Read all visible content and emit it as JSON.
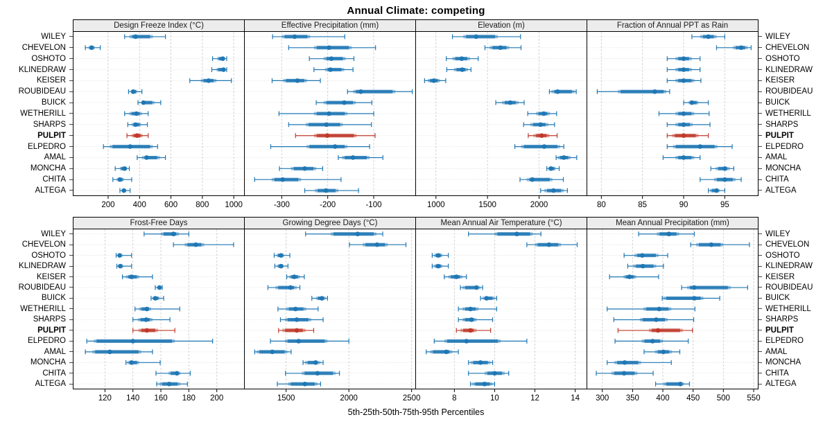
{
  "title": "Annual Climate: competing",
  "caption": "5th-25th-50th-75th-95th Percentiles",
  "colors": {
    "series": "#1F77B4",
    "highlight": "#C0392B",
    "grid": "#CFCFCF",
    "row_guide": "#D8D8D8",
    "strip_bg": "#ECECEC",
    "panel_border": "#000000",
    "tick_label": "#000000"
  },
  "chart_data": {
    "type": "percentile-interval",
    "note": "each series value array is [q05,q25,q50,q75,q95]",
    "legend": "5th-25th-50th-75th-95th Percentiles",
    "highlight_site": "PULPIT",
    "sites": [
      "WILEY",
      "CHEVELON",
      "OSHOTO",
      "KLINEDRAW",
      "KEISER",
      "ROUBIDEAU",
      "BUICK",
      "WETHERILL",
      "SHARPS",
      "PULPIT",
      "ELPEDRO",
      "AMAL",
      "MONCHA",
      "CHITA",
      "ALTEGA"
    ],
    "panels": [
      {
        "title": "Design Freeze Index (°C)",
        "row": "top",
        "xlim": [
          -25,
          1070
        ],
        "ticks": [
          200,
          400,
          600,
          800,
          1000
        ],
        "values": {
          "WILEY": [
            305,
            335,
            375,
            485,
            565
          ],
          "CHEVELON": [
            55,
            75,
            95,
            115,
            150
          ],
          "OSHOTO": [
            865,
            895,
            930,
            945,
            955
          ],
          "KLINEDRAW": [
            860,
            890,
            935,
            948,
            955
          ],
          "KEISER": [
            720,
            790,
            840,
            890,
            985
          ],
          "ROUBIDEAU": [
            330,
            345,
            360,
            385,
            415
          ],
          "BUICK": [
            390,
            415,
            425,
            495,
            535
          ],
          "WETHERILL": [
            305,
            335,
            380,
            415,
            455
          ],
          "SHARPS": [
            325,
            350,
            375,
            410,
            450
          ],
          "PULPIT": [
            320,
            350,
            385,
            420,
            455
          ],
          "ELPEDRO": [
            170,
            210,
            340,
            485,
            515
          ],
          "AMAL": [
            385,
            415,
            445,
            530,
            565
          ],
          "MONCHA": [
            245,
            275,
            305,
            320,
            335
          ],
          "CHITA": [
            230,
            255,
            275,
            300,
            350
          ],
          "ALTEGA": [
            275,
            290,
            300,
            315,
            340
          ]
        }
      },
      {
        "title": "Effective Precipitation (mm)",
        "row": "top",
        "xlim": [
          -382,
          -8
        ],
        "ticks": [
          -300,
          -200,
          -100
        ],
        "values": {
          "WILEY": [
            -320,
            -300,
            -272,
            -238,
            -163
          ],
          "CHEVELON": [
            -285,
            -230,
            -197,
            -148,
            -96
          ],
          "OSHOTO": [
            -240,
            -209,
            -192,
            -161,
            -143
          ],
          "KLINEDRAW": [
            -230,
            -206,
            -194,
            -164,
            -145
          ],
          "KEISER": [
            -321,
            -297,
            -266,
            -245,
            -216
          ],
          "ROUBIDEAU": [
            -157,
            -145,
            -128,
            -53,
            -16
          ],
          "BUICK": [
            -225,
            -209,
            -164,
            -139,
            -104
          ],
          "WETHERILL": [
            -306,
            -230,
            -197,
            -157,
            -100
          ],
          "SHARPS": [
            -285,
            -248,
            -203,
            -167,
            -105
          ],
          "PULPIT": [
            -270,
            -230,
            -201,
            -137,
            -97
          ],
          "ELPEDRO": [
            -324,
            -246,
            -184,
            -157,
            -109
          ],
          "AMAL": [
            -177,
            -169,
            -145,
            -109,
            -80
          ],
          "MONCHA": [
            -305,
            -280,
            -250,
            -225,
            -211
          ],
          "CHITA": [
            -359,
            -322,
            -298,
            -258,
            -171
          ],
          "ALTEGA": [
            -250,
            -228,
            -204,
            -177,
            -133
          ]
        }
      },
      {
        "title": "Elevation (m)",
        "row": "top",
        "xlim": [
          800,
          2467
        ],
        "ticks": [
          1000,
          1500,
          2000
        ],
        "values": {
          "WILEY": [
            1160,
            1265,
            1390,
            1600,
            1820
          ],
          "CHEVELON": [
            1475,
            1520,
            1625,
            1710,
            1825
          ],
          "OSHOTO": [
            1100,
            1160,
            1250,
            1330,
            1410
          ],
          "KLINEDRAW": [
            1105,
            1175,
            1255,
            1310,
            1340
          ],
          "KEISER": [
            890,
            920,
            980,
            1040,
            1095
          ],
          "ROUBIDEAU": [
            2100,
            2120,
            2180,
            2345,
            2360
          ],
          "BUICK": [
            1580,
            1640,
            1720,
            1800,
            1855
          ],
          "WETHERILL": [
            1890,
            1970,
            2045,
            2105,
            2170
          ],
          "SHARPS": [
            1850,
            1915,
            2015,
            2090,
            2150
          ],
          "PULPIT": [
            1895,
            1945,
            2025,
            2100,
            2175
          ],
          "ELPEDRO": [
            1765,
            1825,
            2050,
            2205,
            2240
          ],
          "AMAL": [
            2165,
            2180,
            2240,
            2305,
            2365
          ],
          "MONCHA": [
            2075,
            2090,
            2115,
            2160,
            2195
          ],
          "CHITA": [
            1815,
            1880,
            1935,
            2130,
            2235
          ],
          "ALTEGA": [
            2015,
            2050,
            2140,
            2240,
            2275
          ]
        }
      },
      {
        "title": "Fraction of Annual PPT as Rain",
        "row": "top",
        "xlim": [
          78.2,
          99.1
        ],
        "ticks": [
          80,
          85,
          90,
          95
        ],
        "values": {
          "WILEY": [
            91,
            92,
            93,
            94,
            95
          ],
          "CHEVELON": [
            94,
            96,
            97,
            97.8,
            98.2
          ],
          "OSHOTO": [
            88,
            89,
            90,
            91,
            92
          ],
          "KLINEDRAW": [
            88,
            89,
            90,
            91,
            92
          ],
          "KEISER": [
            88,
            89,
            90,
            91.3,
            92.1
          ],
          "ROUBIDEAU": [
            79.5,
            82,
            86.5,
            87.9,
            88.3
          ],
          "BUICK": [
            90,
            90.6,
            91,
            91.8,
            93
          ],
          "WETHERILL": [
            87,
            89,
            90,
            91.3,
            93.1
          ],
          "SHARPS": [
            88,
            89,
            90,
            91.1,
            93.2
          ],
          "PULPIT": [
            88,
            88.6,
            90,
            91.8,
            93
          ],
          "ELPEDRO": [
            88,
            88.7,
            92,
            94.1,
            95.9
          ],
          "AMAL": [
            87.5,
            89,
            90,
            91.3,
            92
          ],
          "MONCHA": [
            93.3,
            93.9,
            95,
            95.6,
            96.1
          ],
          "CHITA": [
            92,
            93.7,
            95,
            96.3,
            97
          ],
          "ALTEGA": [
            93,
            93.2,
            94,
            94.4,
            95
          ]
        }
      },
      {
        "title": "Frost-Free Days",
        "row": "bottom",
        "xlim": [
          97,
          220
        ],
        "ticks": [
          120,
          140,
          160,
          180,
          200
        ],
        "values": {
          "WILEY": [
            148,
            160,
            169,
            173,
            180
          ],
          "CHEVELON": [
            169,
            177,
            185,
            191,
            212
          ],
          "OSHOTO": [
            128,
            129,
            130.5,
            132.5,
            139
          ],
          "KLINEDRAW": [
            128.5,
            129.5,
            131,
            133,
            139
          ],
          "KEISER": [
            132.5,
            135,
            139,
            144.5,
            154
          ],
          "ROUBIDEAU": [
            156,
            157.5,
            159,
            160,
            161
          ],
          "BUICK": [
            153,
            154,
            156,
            159,
            162
          ],
          "WETHERILL": [
            141.5,
            144.5,
            150,
            153,
            173.5
          ],
          "SHARPS": [
            140,
            143.5,
            149.5,
            154,
            166.5
          ],
          "PULPIT": [
            140,
            144,
            150,
            158,
            170
          ],
          "ELPEDRO": [
            107,
            112,
            140,
            170,
            197
          ],
          "AMAL": [
            106,
            111,
            123.5,
            146,
            154
          ],
          "MONCHA": [
            135,
            136,
            139,
            144.5,
            159.5
          ],
          "CHITA": [
            156.5,
            165.5,
            171.5,
            174,
            181
          ],
          "ALTEGA": [
            157,
            159,
            166,
            174,
            179
          ]
        }
      },
      {
        "title": "Growing Degree Days (°C)",
        "row": "bottom",
        "xlim": [
          1165,
          2535
        ],
        "ticks": [
          1500,
          2000,
          2500
        ],
        "values": {
          "WILEY": [
            1655,
            1855,
            2070,
            2220,
            2270
          ],
          "CHEVELON": [
            2005,
            2110,
            2225,
            2310,
            2455
          ],
          "OSHOTO": [
            1405,
            1425,
            1460,
            1485,
            1530
          ],
          "KLINEDRAW": [
            1410,
            1430,
            1460,
            1480,
            1515
          ],
          "KEISER": [
            1505,
            1525,
            1565,
            1610,
            1645
          ],
          "ROUBIDEAU": [
            1355,
            1415,
            1535,
            1585,
            1610
          ],
          "BUICK": [
            1705,
            1740,
            1785,
            1815,
            1830
          ],
          "WETHERILL": [
            1435,
            1500,
            1575,
            1660,
            1755
          ],
          "SHARPS": [
            1455,
            1490,
            1585,
            1700,
            1795
          ],
          "PULPIT": [
            1440,
            1470,
            1585,
            1655,
            1720
          ],
          "ELPEDRO": [
            1375,
            1490,
            1600,
            1830,
            2000
          ],
          "AMAL": [
            1250,
            1265,
            1390,
            1510,
            1540
          ],
          "MONCHA": [
            1635,
            1650,
            1735,
            1775,
            1795
          ],
          "CHITA": [
            1495,
            1625,
            1750,
            1895,
            1925
          ],
          "ALTEGA": [
            1430,
            1515,
            1650,
            1750,
            1775
          ]
        }
      },
      {
        "title": "Mean Annual Air Temperature (°C)",
        "row": "bottom",
        "xlim": [
          6.06,
          14.6
        ],
        "ticks": [
          8,
          10,
          12,
          14
        ],
        "values": {
          "WILEY": [
            8.7,
            10,
            11.1,
            11.9,
            12.3
          ],
          "CHEVELON": [
            11.6,
            12,
            12.7,
            13.3,
            14.1
          ],
          "OSHOTO": [
            6.9,
            7,
            7.2,
            7.4,
            7.7
          ],
          "KLINEDRAW": [
            6.9,
            7,
            7.2,
            7.4,
            7.7
          ],
          "KEISER": [
            7.5,
            7.7,
            8.1,
            8.4,
            8.6
          ],
          "ROUBIDEAU": [
            8.3,
            8.4,
            9.1,
            9.3,
            9.4
          ],
          "BUICK": [
            9.3,
            9.4,
            9.6,
            10,
            10.1
          ],
          "WETHERILL": [
            8.2,
            8.4,
            8.8,
            9.2,
            10.1
          ],
          "SHARPS": [
            8.2,
            8.4,
            8.85,
            9.1,
            9.9
          ],
          "PULPIT": [
            8.1,
            8.3,
            8.8,
            9.1,
            9.8
          ],
          "ELPEDRO": [
            7,
            7.5,
            8.6,
            10.3,
            11.6
          ],
          "AMAL": [
            6.6,
            6.8,
            7.6,
            7.9,
            8.2
          ],
          "MONCHA": [
            8.7,
            8.8,
            9.3,
            9.8,
            9.9
          ],
          "CHITA": [
            8.7,
            9.5,
            10,
            10.5,
            10.7
          ],
          "ALTEGA": [
            8.8,
            8.9,
            9.5,
            9.9,
            10
          ]
        }
      },
      {
        "title": "Mean Annual Precipitation (mm)",
        "row": "bottom",
        "xlim": [
          274,
          558
        ],
        "ticks": [
          300,
          350,
          400,
          450,
          500,
          550
        ],
        "values": {
          "WILEY": [
            360,
            390,
            410,
            427,
            452
          ],
          "CHEVELON": [
            446,
            455,
            480,
            500,
            543
          ],
          "OSHOTO": [
            336,
            353,
            366,
            393,
            408
          ],
          "KLINEDRAW": [
            342,
            351,
            367,
            389,
            401
          ],
          "KEISER": [
            312,
            335,
            345,
            356,
            393
          ],
          "ROUBIDEAU": [
            431,
            440,
            452,
            512,
            540
          ],
          "BUICK": [
            399,
            401,
            452,
            467,
            494
          ],
          "WETHERILL": [
            308,
            368,
            394,
            414,
            453
          ],
          "SHARPS": [
            319,
            362,
            389,
            408,
            451
          ],
          "PULPIT": [
            326,
            377,
            392,
            433,
            449
          ],
          "ELPEDRO": [
            321,
            365,
            383,
            400,
            442
          ],
          "AMAL": [
            369,
            387,
            401,
            415,
            428
          ],
          "MONCHA": [
            308,
            320,
            337,
            364,
            414
          ],
          "CHITA": [
            290,
            315,
            336,
            358,
            384
          ],
          "ALTEGA": [
            388,
            401,
            429,
            435,
            444
          ]
        }
      }
    ]
  }
}
